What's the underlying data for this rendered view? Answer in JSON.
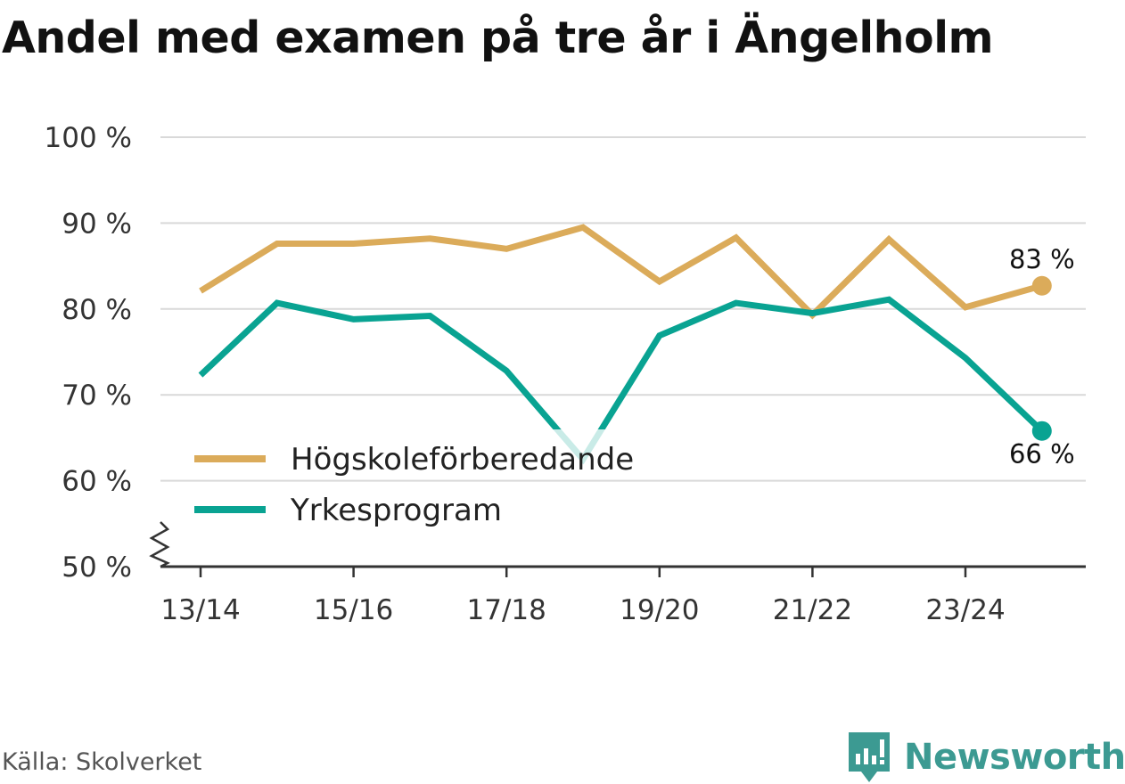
{
  "chart_data": {
    "type": "line",
    "title": "Andel med examen på tre år i Ängelholm",
    "categories": [
      "13/14",
      "14/15",
      "15/16",
      "16/17",
      "17/18",
      "18/19",
      "19/20",
      "20/21",
      "21/22",
      "22/23",
      "23/24",
      "24/25"
    ],
    "tick_labels": [
      "13/14",
      "",
      "15/16",
      "",
      "17/18",
      "",
      "19/20",
      "",
      "21/22",
      "",
      "23/24",
      ""
    ],
    "y_ticks": [
      50,
      60,
      70,
      80,
      90,
      100
    ],
    "y_tick_labels": [
      "50 %",
      "60 %",
      "70 %",
      "80 %",
      "90 %",
      "100 %"
    ],
    "ylim": [
      50,
      100
    ],
    "xlabel": "",
    "ylabel": "",
    "legend_position": "bottom-left",
    "series": [
      {
        "name": "Högskoleförberedande",
        "color": "#dbab5a",
        "values": [
          82.1,
          87.6,
          87.6,
          88.2,
          87.0,
          89.5,
          83.2,
          88.3,
          79.3,
          88.1,
          80.2,
          82.7
        ],
        "end_label": "83 %"
      },
      {
        "name": "Yrkesprogram",
        "color": "#09a392",
        "values": [
          72.3,
          80.7,
          78.8,
          79.2,
          72.8,
          62.5,
          76.9,
          80.7,
          79.5,
          81.1,
          74.3,
          65.8
        ],
        "end_label": "66 %"
      }
    ]
  },
  "footer": {
    "source": "Källa: Skolverket",
    "brand": "Newsworthy"
  },
  "colors": {
    "grid": "#d9d9d9",
    "axis": "#333333",
    "brand": "#3c9a92"
  }
}
